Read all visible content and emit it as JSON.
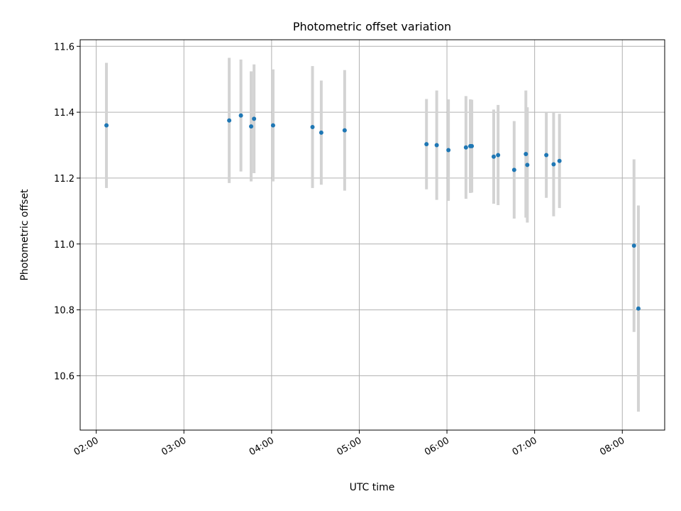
{
  "chart_data": {
    "type": "scatter",
    "title": "Photometric offset variation",
    "xlabel": "UTC time",
    "ylabel": "Photometric offset",
    "xlim": [
      "01:49",
      "08:29"
    ],
    "ylim": [
      10.435,
      11.62
    ],
    "grid": true,
    "xticks": [
      "02:00",
      "03:00",
      "04:00",
      "05:00",
      "06:00",
      "07:00",
      "08:00"
    ],
    "yticks": [
      10.6,
      10.8,
      11.0,
      11.2,
      11.4,
      11.6
    ],
    "ytick_labels": [
      "10.6",
      "10.8",
      "11.0",
      "11.2",
      "11.4",
      "11.6"
    ],
    "marker_color": "#1f77b4",
    "errorbar_color": "#d3d3d3",
    "points": [
      {
        "x": "02:07",
        "y": 11.36,
        "yerr": 0.19
      },
      {
        "x": "03:31",
        "y": 11.375,
        "yerr": 0.19
      },
      {
        "x": "03:39",
        "y": 11.39,
        "yerr": 0.17
      },
      {
        "x": "03:46",
        "y": 11.357,
        "yerr": 0.167
      },
      {
        "x": "03:48",
        "y": 11.38,
        "yerr": 0.165
      },
      {
        "x": "04:01",
        "y": 11.36,
        "yerr": 0.17
      },
      {
        "x": "04:28",
        "y": 11.355,
        "yerr": 0.185
      },
      {
        "x": "04:34",
        "y": 11.338,
        "yerr": 0.158
      },
      {
        "x": "04:50",
        "y": 11.345,
        "yerr": 0.183
      },
      {
        "x": "05:46",
        "y": 11.303,
        "yerr": 0.137
      },
      {
        "x": "05:53",
        "y": 11.3,
        "yerr": 0.166
      },
      {
        "x": "06:01",
        "y": 11.285,
        "yerr": 0.154
      },
      {
        "x": "06:13",
        "y": 11.293,
        "yerr": 0.156
      },
      {
        "x": "06:16",
        "y": 11.297,
        "yerr": 0.142
      },
      {
        "x": "06:17",
        "y": 11.297,
        "yerr": 0.141
      },
      {
        "x": "06:32",
        "y": 11.265,
        "yerr": 0.143
      },
      {
        "x": "06:35",
        "y": 11.27,
        "yerr": 0.152
      },
      {
        "x": "06:46",
        "y": 11.225,
        "yerr": 0.148
      },
      {
        "x": "06:54",
        "y": 11.273,
        "yerr": 0.193
      },
      {
        "x": "06:55",
        "y": 11.24,
        "yerr": 0.175
      },
      {
        "x": "07:08",
        "y": 11.27,
        "yerr": 0.13
      },
      {
        "x": "07:13",
        "y": 11.242,
        "yerr": 0.158
      },
      {
        "x": "07:17",
        "y": 11.252,
        "yerr": 0.143
      },
      {
        "x": "08:08",
        "y": 10.995,
        "yerr": 0.262
      },
      {
        "x": "08:11",
        "y": 10.804,
        "yerr": 0.313
      }
    ]
  }
}
